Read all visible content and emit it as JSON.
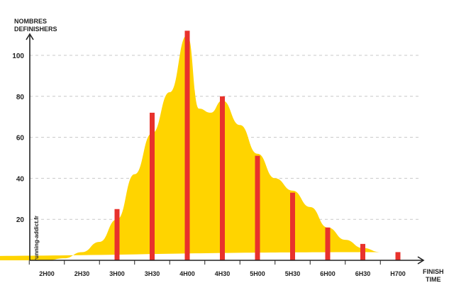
{
  "chart_data": {
    "type": "bar",
    "ylabel_lines": [
      "NOMBRES",
      "DEFINISHERS"
    ],
    "xlabel_lines": [
      "FINISH",
      "TIME"
    ],
    "ylim": [
      0,
      112
    ],
    "yticks": [
      20,
      40,
      60,
      80,
      100
    ],
    "grid": "horizontal dashed",
    "categories": [
      "2H00",
      "2H30",
      "3H00",
      "3H30",
      "4H00",
      "4H30",
      "5H00",
      "5H30",
      "6H00",
      "6H30",
      "H700"
    ],
    "values": [
      0,
      0,
      25,
      72,
      112,
      80,
      51,
      33,
      16,
      8,
      4
    ],
    "area": {
      "x": [
        "2H00",
        "2H15",
        "2H30",
        "2H45",
        "3H00",
        "3H15",
        "3H30",
        "3H45",
        "4H00",
        "4H10",
        "4H20",
        "4H30",
        "4H45",
        "5H00",
        "5H15",
        "5H30",
        "5H45",
        "6H00",
        "6H15",
        "6H30",
        "6H45",
        "H700",
        "H715"
      ],
      "y": [
        0,
        1,
        4,
        9,
        20,
        42,
        62,
        82,
        110,
        74,
        72,
        78,
        66,
        52,
        40,
        34,
        26,
        16,
        10,
        6,
        4,
        2,
        0
      ]
    },
    "watermark": "running-addict.fr",
    "colors": {
      "bar": "#e8322c",
      "area": "#ffd400",
      "grid": "#c8c8c8",
      "axis": "#222222"
    }
  }
}
